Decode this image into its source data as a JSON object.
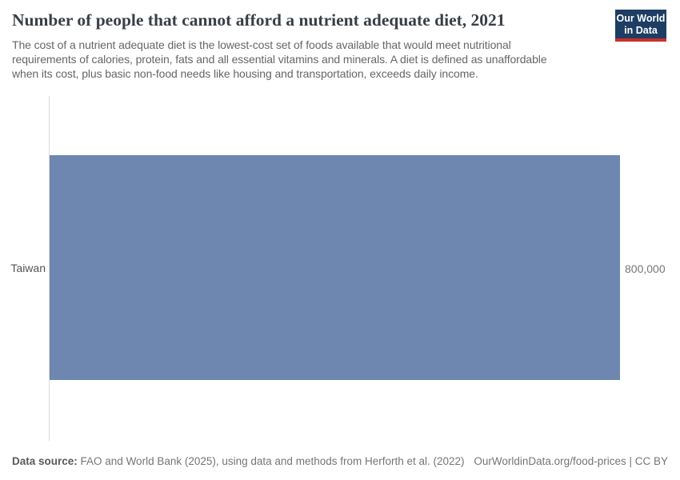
{
  "header": {
    "title": "Number of people that cannot afford a nutrient adequate diet, 2021",
    "subtitle_lines": [
      "The cost of a nutrient adequate diet is the lowest-cost set of foods available that would meet nutritional",
      "requirements of calories, protein, fats and all essential vitamins and minerals. A diet is defined as unaffordable",
      "when its cost, plus basic non-food needs like housing and transportation, exceeds daily income."
    ],
    "logo": {
      "line1": "Our World",
      "line2": "in Data",
      "bg_color": "#1d3d63",
      "accent_color": "#c7302b"
    }
  },
  "chart_data": {
    "type": "bar",
    "orientation": "horizontal",
    "title": "Number of people that cannot afford a nutrient adequate diet, 2021",
    "categories": [
      "Taiwan"
    ],
    "series": [
      {
        "name": "Number of people that cannot afford a nutrient adequate diet",
        "values": [
          800000
        ]
      }
    ],
    "value_labels": [
      "800,000"
    ],
    "x_range": [
      0,
      800000
    ],
    "grid": false,
    "legend": "none",
    "bar_color": "#6d87b0",
    "axis_line_color": "#dbdbdb"
  },
  "footer": {
    "source_label": "Data source:",
    "source_text": " FAO and World Bank (2025), using data and methods from Herforth et al. (2022)",
    "license_text": "OurWorldinData.org/food-prices | CC BY"
  }
}
